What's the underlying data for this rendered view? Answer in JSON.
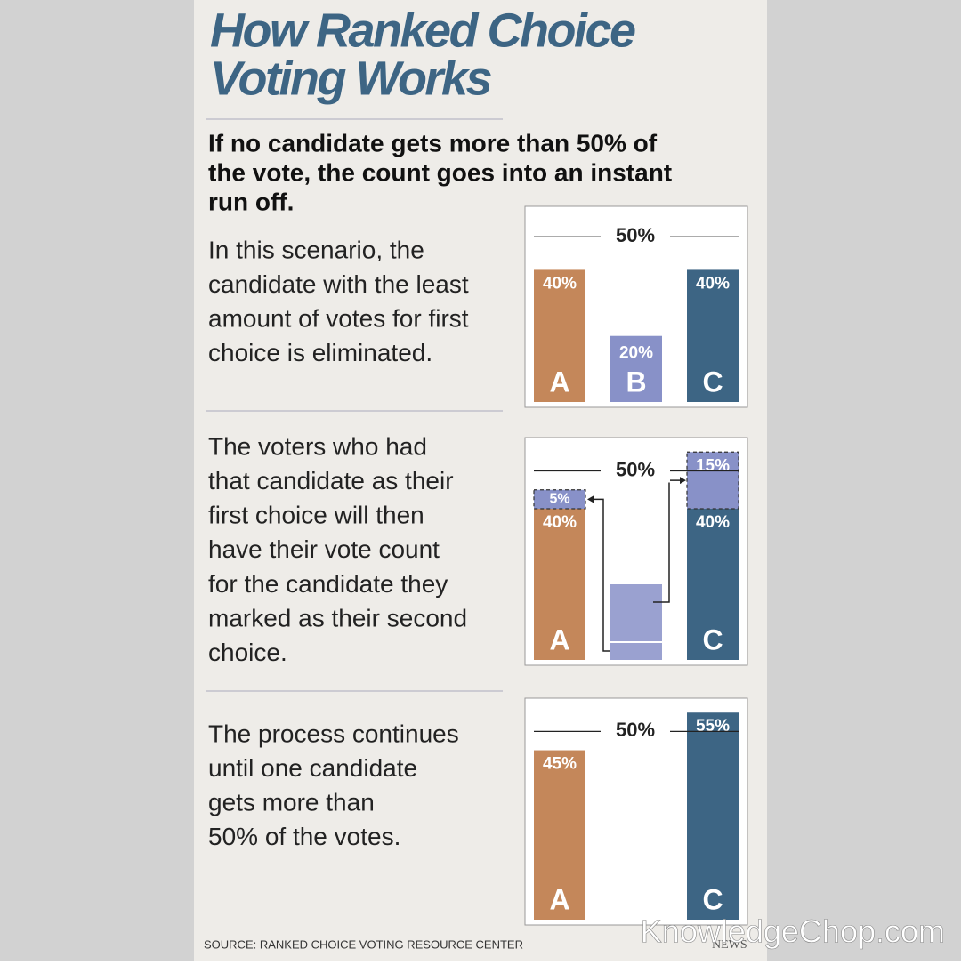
{
  "title": [
    "How Ranked Choice",
    "Voting Works"
  ],
  "subtitle": [
    "If no candidate gets more than 50% of",
    "the vote, the count goes into an instant",
    "run off."
  ],
  "sections": [
    {
      "lines": [
        "In this scenario, the",
        "candidate with the least",
        "amount of votes for first",
        "choice is eliminated."
      ]
    },
    {
      "lines": [
        "The voters who had",
        "that candidate as their",
        "first choice will then",
        "have their vote count",
        "for the candidate they",
        "marked as their second",
        "choice."
      ]
    },
    {
      "lines": [
        "The process continues",
        "until one candidate",
        "gets more than",
        "50% of the votes."
      ]
    }
  ],
  "source": "SOURCE: RANKED CHOICE VOTING RESOURCE CENTER",
  "logo": "NEWS",
  "watermark": "KnowledgeChop.com",
  "chart_data": [
    {
      "type": "bar",
      "categories": [
        "A",
        "B",
        "C"
      ],
      "ylim": [
        0,
        56
      ],
      "threshold": {
        "value": 50,
        "label": "50%"
      },
      "series": [
        {
          "colors": [
            "#c4875a",
            "#8891c8",
            "#3d6584"
          ],
          "values": [
            40,
            20,
            40
          ],
          "value_labels": [
            "40%",
            "20%",
            "40%"
          ]
        }
      ]
    },
    {
      "type": "bar",
      "categories": [
        "A",
        null,
        "C"
      ],
      "ylim": [
        0,
        56
      ],
      "threshold": {
        "value": 50,
        "label": "50%"
      },
      "series": [
        {
          "colors": [
            "#c4875a",
            "#8891c8",
            "#3d6584"
          ],
          "values": [
            40,
            20,
            40
          ],
          "value_labels": [
            "40%",
            null,
            "40%"
          ]
        },
        {
          "colors": [
            "#8891c8",
            "#8891c8",
            "#8891c8"
          ],
          "values": [
            5,
            null,
            15
          ],
          "value_labels": [
            "5%",
            null,
            "15%"
          ],
          "dashed": true
        }
      ]
    },
    {
      "type": "bar",
      "categories": [
        "A",
        null,
        "C"
      ],
      "ylim": [
        0,
        56
      ],
      "threshold": {
        "value": 50,
        "label": "50%"
      },
      "series": [
        {
          "colors": [
            "#c4875a",
            "#8891c8",
            "#3d6584"
          ],
          "values": [
            45,
            null,
            55
          ],
          "value_labels": [
            "45%",
            null,
            "55%"
          ]
        }
      ]
    }
  ]
}
